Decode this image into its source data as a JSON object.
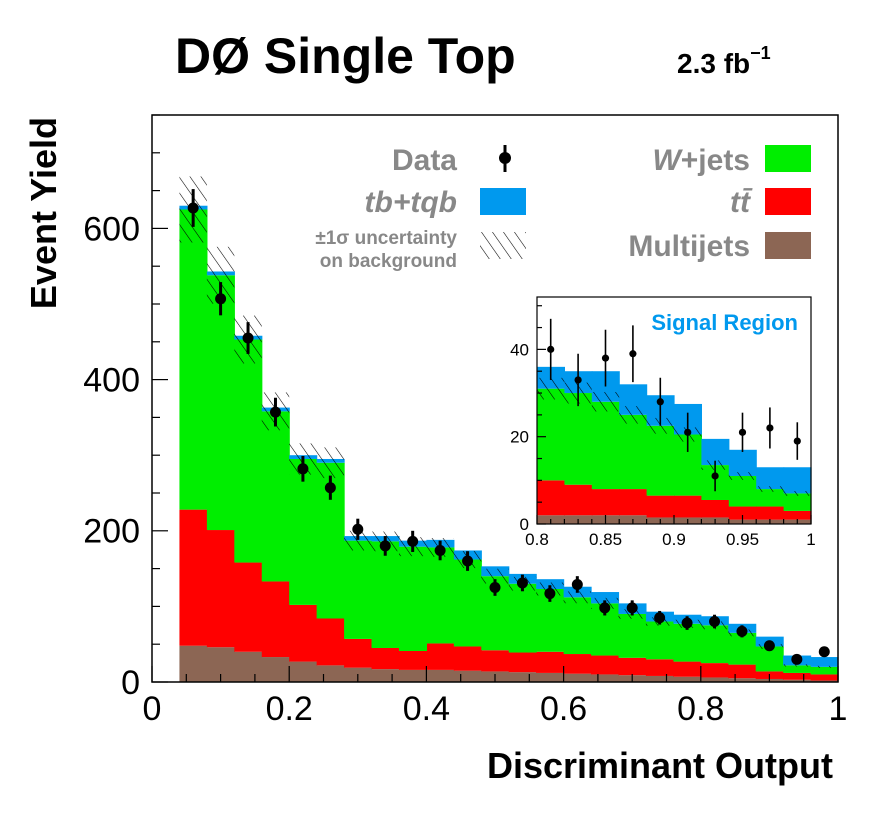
{
  "chart_data": [
    {
      "type": "bar",
      "stacked": true,
      "title": "DØ Single Top",
      "luminosity": "2.3",
      "luminosity_unit": "fb",
      "luminosity_exp": "−1",
      "xlabel": "Discriminant Output",
      "ylabel": "Event Yield",
      "xlim": [
        0,
        1
      ],
      "ylim": [
        0,
        750
      ],
      "x_ticks": [
        0,
        0.2,
        0.4,
        0.6,
        0.8,
        1
      ],
      "x_tick_labels": [
        "0",
        "0.2",
        "0.4",
        "0.6",
        "0.8",
        "1"
      ],
      "y_ticks": [
        0,
        200,
        400,
        600
      ],
      "y_tick_labels": [
        "0",
        "200",
        "400",
        "600"
      ],
      "bin_edges": [
        0.04,
        0.08,
        0.12,
        0.16,
        0.2,
        0.24,
        0.28,
        0.32,
        0.36,
        0.4,
        0.44,
        0.48,
        0.52,
        0.56,
        0.6,
        0.64,
        0.68,
        0.72,
        0.76,
        0.8,
        0.84,
        0.88,
        0.92,
        0.96,
        1.0
      ],
      "series": [
        {
          "name": "Multijets",
          "color": "#8c6654",
          "values": [
            48,
            46,
            40,
            33,
            27,
            22,
            19,
            17,
            16,
            16,
            15,
            14,
            13,
            12,
            11,
            10,
            9,
            8,
            7,
            6,
            5,
            4,
            3,
            2
          ]
        },
        {
          "name": "tt̄",
          "color": "#ff0000",
          "values": [
            180,
            155,
            118,
            100,
            75,
            62,
            38,
            28,
            25,
            35,
            32,
            28,
            26,
            28,
            26,
            25,
            23,
            22,
            20,
            19,
            18,
            10,
            9,
            8
          ]
        },
        {
          "name": "W+jets",
          "color": "#00ee00",
          "values": [
            397,
            337,
            295,
            225,
            193,
            206,
            130,
            141,
            138,
            127,
            115,
            98,
            91,
            83,
            75,
            69,
            58,
            50,
            50,
            50,
            42,
            33,
            10,
            10
          ]
        },
        {
          "name": "tb+tqb",
          "color": "#0099ee",
          "values": [
            5,
            5,
            5,
            5,
            5,
            5,
            6,
            7,
            8,
            10,
            12,
            13,
            13,
            13,
            14,
            15,
            14,
            13,
            12,
            12,
            12,
            13,
            13,
            13
          ]
        }
      ],
      "uncertainty": {
        "label": "±1σ uncertainty",
        "label2": "on background",
        "fraction": 0.07
      },
      "data_points": {
        "name": "Data",
        "x": [
          0.06,
          0.1,
          0.14,
          0.18,
          0.22,
          0.26,
          0.3,
          0.34,
          0.38,
          0.42,
          0.46,
          0.5,
          0.54,
          0.58,
          0.62,
          0.66,
          0.7,
          0.74,
          0.78,
          0.82,
          0.86,
          0.9,
          0.94,
          0.98
        ],
        "y": [
          627,
          507,
          455,
          357,
          282,
          257,
          202,
          180,
          186,
          174,
          160,
          125,
          131,
          117,
          129,
          98,
          98,
          85,
          78,
          80,
          67,
          48,
          30,
          40
        ],
        "err": [
          25,
          22,
          21,
          19,
          17,
          16,
          14,
          13,
          14,
          13,
          13,
          11,
          11,
          11,
          11,
          10,
          10,
          9,
          9,
          9,
          8,
          7,
          6,
          6
        ]
      },
      "legend": [
        {
          "label": "Data",
          "kind": "marker"
        },
        {
          "label": "tb+tqb",
          "kind": "box",
          "color": "#0099ee",
          "italic": true
        },
        {
          "label": "±1σ uncertainty",
          "label2": "on background",
          "kind": "hatch"
        },
        {
          "label": "W+jets",
          "kind": "box",
          "color": "#00ee00",
          "italic_prefix": "W"
        },
        {
          "label": "tt̄",
          "kind": "box",
          "color": "#ff0000",
          "italic": true
        },
        {
          "label": "Multijets",
          "kind": "box",
          "color": "#8c6654"
        }
      ]
    },
    {
      "type": "bar",
      "stacked": true,
      "title": "Signal Region",
      "title_color": "#0099ee",
      "xlim": [
        0.8,
        1
      ],
      "ylim": [
        0,
        52
      ],
      "x_ticks": [
        0.8,
        0.85,
        0.9,
        0.95,
        1
      ],
      "x_tick_labels": [
        "0.8",
        "0.85",
        "0.9",
        "0.95",
        "1"
      ],
      "y_ticks": [
        0,
        20,
        40
      ],
      "y_tick_labels": [
        "0",
        "20",
        "40"
      ],
      "bin_edges": [
        0.8,
        0.82,
        0.84,
        0.86,
        0.88,
        0.9,
        0.92,
        0.94,
        0.96,
        0.98,
        1.0
      ],
      "series": [
        {
          "name": "Multijets",
          "color": "#8c6654",
          "values": [
            2,
            2,
            2,
            2,
            1.5,
            1.5,
            1.5,
            1,
            1,
            1
          ]
        },
        {
          "name": "tt̄",
          "color": "#ff0000",
          "values": [
            8,
            7,
            6,
            6,
            5,
            5,
            4,
            3,
            3,
            2
          ]
        },
        {
          "name": "W+jets",
          "color": "#00ee00",
          "values": [
            21,
            21,
            20,
            17,
            16,
            14,
            8,
            7,
            4,
            4
          ]
        },
        {
          "name": "tb+tqb",
          "color": "#0099ee",
          "values": [
            5,
            5,
            7,
            7,
            7,
            7,
            6,
            6,
            5,
            6
          ]
        }
      ],
      "uncertainty": {
        "fraction": 0.08
      },
      "data_points": {
        "x": [
          0.81,
          0.83,
          0.85,
          0.87,
          0.89,
          0.91,
          0.93,
          0.95,
          0.97,
          0.99
        ],
        "y": [
          40,
          33,
          38,
          39,
          28,
          21,
          11,
          21,
          22,
          19
        ],
        "err": [
          7,
          6,
          6.5,
          6.5,
          5.5,
          4.5,
          3.5,
          4.5,
          4.7,
          4.3
        ]
      }
    }
  ]
}
